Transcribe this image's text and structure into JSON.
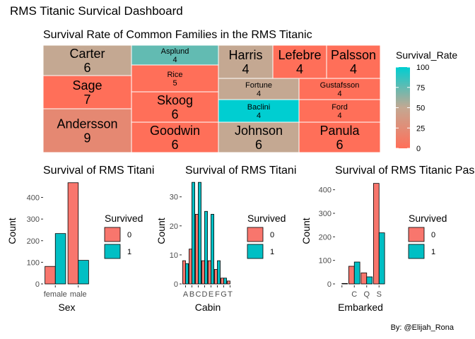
{
  "dashboard": {
    "title": "RMS Titanic Survical Dashboard",
    "credit": "By: @Elijah_Rona"
  },
  "colors": {
    "low": "#FF6F59",
    "mid": "#C4A892",
    "high": "#00CED1",
    "survived_0": "#F8766D",
    "survived_1": "#00BFC4",
    "tile_border": "#ffffff"
  },
  "chart_data": [
    {
      "type": "treemap",
      "title": "Survival Rate of Common Families in the RMS Titanic",
      "legend": {
        "title": "Survival_Rate",
        "breaks": [
          0,
          25,
          50,
          75,
          100
        ],
        "range": [
          0,
          100
        ],
        "placement": "right"
      },
      "tiles": [
        {
          "family": "Carter",
          "count": 6,
          "survival_rate": 50
        },
        {
          "family": "Sage",
          "count": 7,
          "survival_rate": 0
        },
        {
          "family": "Andersson",
          "count": 9,
          "survival_rate": 22
        },
        {
          "family": "Asplund",
          "count": 4,
          "survival_rate": 75
        },
        {
          "family": "Rice",
          "count": 5,
          "survival_rate": 0
        },
        {
          "family": "Skoog",
          "count": 6,
          "survival_rate": 0
        },
        {
          "family": "Goodwin",
          "count": 6,
          "survival_rate": 0
        },
        {
          "family": "Harris",
          "count": 4,
          "survival_rate": 50
        },
        {
          "family": "Lefebre",
          "count": 4,
          "survival_rate": 0
        },
        {
          "family": "Palsson",
          "count": 4,
          "survival_rate": 0
        },
        {
          "family": "Fortune",
          "count": 4,
          "survival_rate": 50
        },
        {
          "family": "Gustafsson",
          "count": 4,
          "survival_rate": 0
        },
        {
          "family": "Baclini",
          "count": 4,
          "survival_rate": 100
        },
        {
          "family": "Ford",
          "count": 4,
          "survival_rate": 0
        },
        {
          "family": "Johnson",
          "count": 6,
          "survival_rate": 50
        },
        {
          "family": "Panula",
          "count": 6,
          "survival_rate": 0
        }
      ]
    },
    {
      "type": "bar",
      "title": "Survival of RMS Titanic Passengers by Sex",
      "xlabel": "Sex",
      "ylabel": "Count",
      "categories": [
        "female",
        "male"
      ],
      "ylim": [
        0,
        490
      ],
      "yticks": [
        0,
        100,
        200,
        300,
        400
      ],
      "legend_title": "Survived",
      "series": [
        {
          "name": "0",
          "values": [
            81,
            468
          ]
        },
        {
          "name": "1",
          "values": [
            233,
            109
          ]
        }
      ]
    },
    {
      "type": "bar",
      "title": "Survival of RMS Titanic Passengers by Cabin",
      "xlabel": "Cabin",
      "ylabel": "Count",
      "categories": [
        "A",
        "B",
        "C",
        "D",
        "E",
        "F",
        "G",
        "T"
      ],
      "ylim": [
        0,
        36.5
      ],
      "yticks": [
        0,
        10,
        20,
        30
      ],
      "legend_title": "Survived",
      "series": [
        {
          "name": "0",
          "values": [
            8,
            12,
            24,
            8,
            8,
            5,
            2,
            1
          ]
        },
        {
          "name": "1",
          "values": [
            7,
            35,
            35,
            25,
            24,
            8,
            2,
            0
          ]
        }
      ]
    },
    {
      "type": "bar",
      "title": "Survival of RMS Titanic Passengers by Embarked",
      "xlabel": "Embarked",
      "ylabel": "Count",
      "categories": [
        "",
        "C",
        "Q",
        "S"
      ],
      "ylim": [
        0,
        450
      ],
      "yticks": [
        0,
        100,
        200,
        300,
        400
      ],
      "legend_title": "Survived",
      "series": [
        {
          "name": "0",
          "values": [
            0,
            75,
            47,
            427
          ]
        },
        {
          "name": "1",
          "values": [
            2,
            93,
            30,
            217
          ]
        }
      ]
    }
  ]
}
